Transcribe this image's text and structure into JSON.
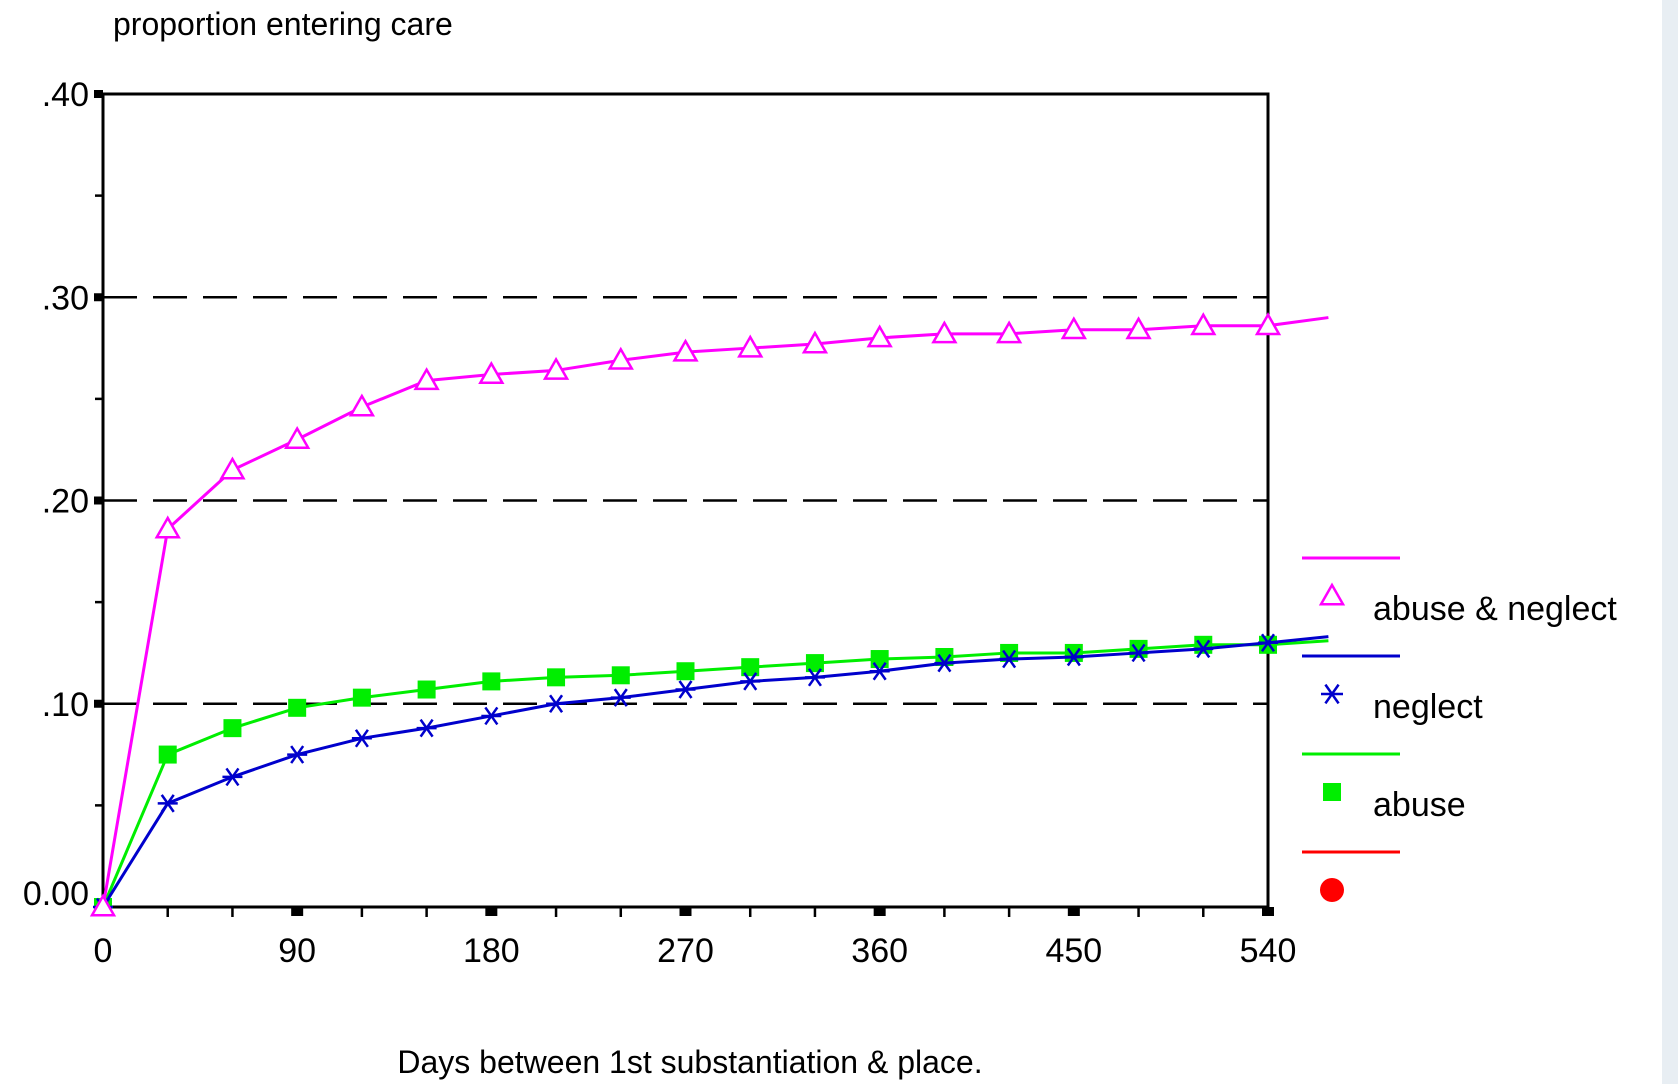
{
  "chart_data": {
    "type": "line",
    "ylabel": "proportion entering care",
    "xlabel": "Days between 1st substantiation & place.",
    "xlim": [
      0,
      540
    ],
    "ylim": [
      0,
      0.4
    ],
    "x_ticks": [
      0,
      90,
      180,
      270,
      360,
      450,
      540
    ],
    "x_tick_labels": [
      "0",
      "90",
      "180",
      "270",
      "360",
      "450",
      "540"
    ],
    "y_ticks": [
      0,
      0.1,
      0.2,
      0.3,
      0.4
    ],
    "y_tick_labels": [
      "0.00",
      ".10",
      ".20",
      ".30",
      ".40"
    ],
    "grid": "dashed horizontal at .10, .20, .30",
    "legend_position": "right",
    "series": [
      {
        "name": "abuse & neglect",
        "color": "#ff00ff",
        "marker": "triangle-open",
        "x": [
          0,
          30,
          60,
          90,
          120,
          150,
          180,
          210,
          240,
          270,
          300,
          330,
          360,
          390,
          420,
          450,
          480,
          510,
          540
        ],
        "y": [
          0,
          0.186,
          0.215,
          0.23,
          0.246,
          0.259,
          0.262,
          0.264,
          0.269,
          0.273,
          0.275,
          0.277,
          0.28,
          0.282,
          0.282,
          0.284,
          0.284,
          0.286,
          0.286
        ],
        "line_end": [
          568,
          0.29
        ]
      },
      {
        "name": "neglect",
        "color": "#0000cc",
        "marker": "asterisk",
        "x": [
          0,
          30,
          60,
          90,
          120,
          150,
          180,
          210,
          240,
          270,
          300,
          330,
          360,
          390,
          420,
          450,
          480,
          510,
          540
        ],
        "y": [
          0,
          0.051,
          0.064,
          0.075,
          0.083,
          0.088,
          0.094,
          0.1,
          0.103,
          0.107,
          0.111,
          0.113,
          0.116,
          0.12,
          0.122,
          0.123,
          0.125,
          0.127,
          0.13
        ],
        "line_end": [
          568,
          0.133
        ]
      },
      {
        "name": "abuse",
        "color": "#00ee00",
        "marker": "square",
        "x": [
          0,
          30,
          60,
          90,
          120,
          150,
          180,
          210,
          240,
          270,
          300,
          330,
          360,
          390,
          420,
          450,
          480,
          510,
          540
        ],
        "y": [
          0,
          0.075,
          0.088,
          0.098,
          0.103,
          0.107,
          0.111,
          0.113,
          0.114,
          0.116,
          0.118,
          0.12,
          0.122,
          0.123,
          0.125,
          0.125,
          0.127,
          0.129,
          0.129
        ],
        "line_end": [
          568,
          0.131
        ]
      },
      {
        "name": "",
        "color": "#ff0000",
        "marker": "circle",
        "x": [],
        "y": []
      }
    ]
  }
}
